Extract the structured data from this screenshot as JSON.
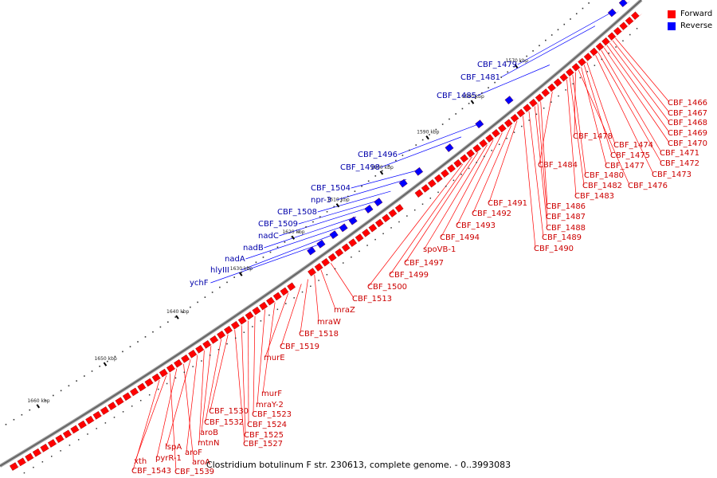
{
  "legend": {
    "forward_label": "Forward",
    "reverse_label": "Reverse",
    "forward_color": "#ff0000",
    "reverse_color": "#0000ff"
  },
  "colors": {
    "backbone": "#888888",
    "forward_text": "#cc0000",
    "reverse_text": "#0000aa"
  },
  "caption": "Clostridium botulinum F str. 230613, complete genome. - 0..3993083",
  "ticks": [
    {
      "label": "1570 kbp"
    },
    {
      "label": "1580 kbp"
    },
    {
      "label": "1590 kbp"
    },
    {
      "label": "1600 kbp"
    },
    {
      "label": "1610 kbp"
    },
    {
      "label": "1620 kbp"
    },
    {
      "label": "1630 kbp"
    },
    {
      "label": "1640 kbp"
    },
    {
      "label": "1650 kbp"
    },
    {
      "label": "1660 kbp"
    }
  ],
  "reverse_labels": [
    "CBF_1479",
    "CBF_1481",
    "CBF_1485",
    "CBF_1496",
    "CBF_1498",
    "CBF_1504",
    "npr-3",
    "CBF_1508",
    "CBF_1509",
    "nadC",
    "nadB",
    "nadA",
    "hlyIII",
    "ychF"
  ],
  "forward_labels": [
    "CBF_1466",
    "CBF_1467",
    "CBF_1468",
    "CBF_1469",
    "CBF_1470",
    "CBF_1471",
    "CBF_1472",
    "CBF_1473",
    "CBF_1476",
    "CBF_1474",
    "CBF_1475",
    "CBF_1477",
    "CBF_1478",
    "CBF_1480",
    "CBF_1482",
    "CBF_1483",
    "CBF_1484",
    "CBF_1486",
    "CBF_1487",
    "CBF_1488",
    "CBF_1489",
    "CBF_1490",
    "CBF_1491",
    "CBF_1492",
    "CBF_1493",
    "CBF_1494",
    "spoVB-1",
    "CBF_1497",
    "CBF_1499",
    "CBF_1500",
    "CBF_1513",
    "mraZ",
    "mraW",
    "CBF_1518",
    "CBF_1519",
    "murE",
    "murF",
    "mraY-2",
    "CBF_1523",
    "CBF_1524",
    "CBF_1525",
    "CBF_1527",
    "CBF_1530",
    "CBF_1532",
    "aroB",
    "mtnN",
    "aroF",
    "lspA",
    "aroA",
    "pyrR-1",
    "xth",
    "CBF_1543",
    "CBF_1539"
  ]
}
